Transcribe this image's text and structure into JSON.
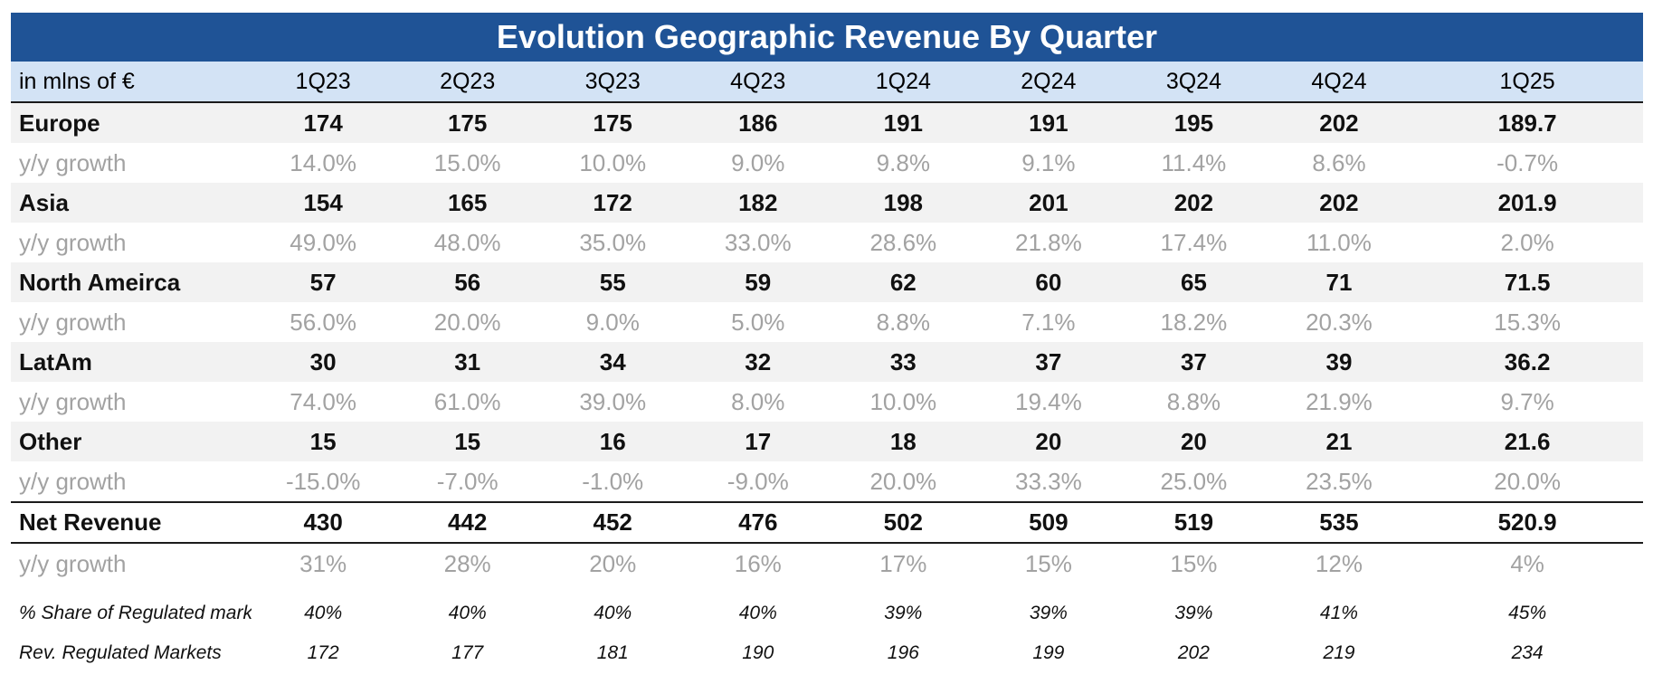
{
  "chart_data": {
    "type": "table",
    "title": "Evolution Geographic Revenue By Quarter",
    "unit_label": "in mlns of €",
    "columns": [
      "1Q23",
      "2Q23",
      "3Q23",
      "4Q23",
      "1Q24",
      "2Q24",
      "3Q24",
      "4Q24",
      "1Q25"
    ],
    "regions": [
      {
        "name": "Europe",
        "values": [
          "174",
          "175",
          "175",
          "186",
          "191",
          "191",
          "195",
          "202",
          "189.7"
        ],
        "growth_label": "y/y growth",
        "growth": [
          "14.0%",
          "15.0%",
          "10.0%",
          "9.0%",
          "9.8%",
          "9.1%",
          "11.4%",
          "8.6%",
          "-0.7%"
        ]
      },
      {
        "name": "Asia",
        "values": [
          "154",
          "165",
          "172",
          "182",
          "198",
          "201",
          "202",
          "202",
          "201.9"
        ],
        "growth_label": "y/y growth",
        "growth": [
          "49.0%",
          "48.0%",
          "35.0%",
          "33.0%",
          "28.6%",
          "21.8%",
          "17.4%",
          "11.0%",
          "2.0%"
        ]
      },
      {
        "name": "North Ameirca",
        "values": [
          "57",
          "56",
          "55",
          "59",
          "62",
          "60",
          "65",
          "71",
          "71.5"
        ],
        "growth_label": "y/y growth",
        "growth": [
          "56.0%",
          "20.0%",
          "9.0%",
          "5.0%",
          "8.8%",
          "7.1%",
          "18.2%",
          "20.3%",
          "15.3%"
        ]
      },
      {
        "name": "LatAm",
        "values": [
          "30",
          "31",
          "34",
          "32",
          "33",
          "37",
          "37",
          "39",
          "36.2"
        ],
        "growth_label": "y/y growth",
        "growth": [
          "74.0%",
          "61.0%",
          "39.0%",
          "8.0%",
          "10.0%",
          "19.4%",
          "8.8%",
          "21.9%",
          "9.7%"
        ]
      },
      {
        "name": "Other",
        "values": [
          "15",
          "15",
          "16",
          "17",
          "18",
          "20",
          "20",
          "21",
          "21.6"
        ],
        "growth_label": "y/y growth",
        "growth": [
          "-15.0%",
          "-7.0%",
          "-1.0%",
          "-9.0%",
          "20.0%",
          "33.3%",
          "25.0%",
          "23.5%",
          "20.0%"
        ]
      }
    ],
    "total": {
      "name": "Net Revenue",
      "values": [
        "430",
        "442",
        "452",
        "476",
        "502",
        "509",
        "519",
        "535",
        "520.9"
      ],
      "growth_label": "y/y growth",
      "growth": [
        "31%",
        "28%",
        "20%",
        "16%",
        "17%",
        "15%",
        "15%",
        "12%",
        "4%"
      ]
    },
    "regulated_share": {
      "label": "% Share of Regulated markets",
      "values": [
        "40%",
        "40%",
        "40%",
        "40%",
        "39%",
        "39%",
        "39%",
        "41%",
        "45%"
      ]
    },
    "regulated_revenue": {
      "label": "Rev. Regulated Markets",
      "values": [
        "172",
        "177",
        "181",
        "190",
        "196",
        "199",
        "202",
        "219",
        "234"
      ]
    }
  },
  "colors": {
    "title_bg": "#1f5396",
    "header_bg": "#d3e3f5",
    "band_bg": "#f2f2f2",
    "growth_text": "#a2a2a2"
  }
}
